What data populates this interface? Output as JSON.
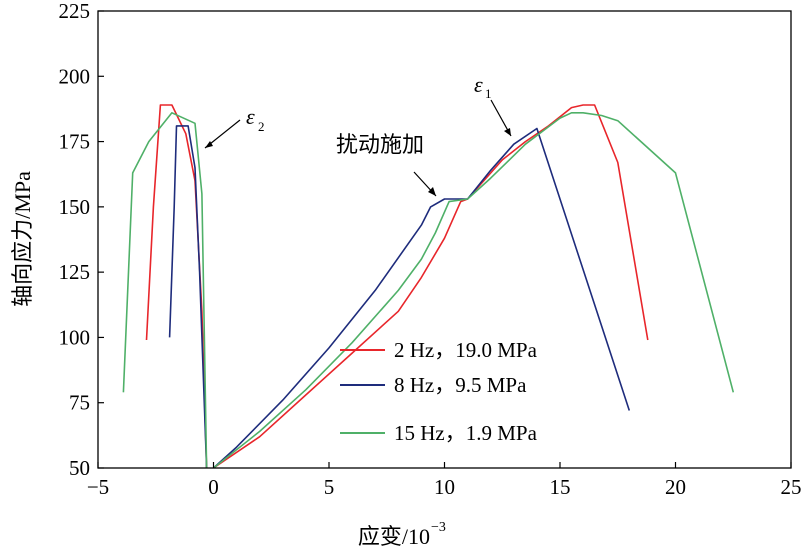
{
  "chart_data": {
    "type": "line",
    "xlabel": "应变/10",
    "xlabel_exponent": "−3",
    "ylabel": "轴向应力/MPa",
    "xlim": [
      -5,
      25
    ],
    "ylim": [
      50,
      225
    ],
    "xticks": [
      "−5",
      "0",
      "5",
      "10",
      "15",
      "20",
      "25"
    ],
    "yticks": [
      "50",
      "75",
      "100",
      "125",
      "150",
      "175",
      "200",
      "225"
    ],
    "grid": false,
    "legend_position": "bottom-center",
    "annotations": {
      "disturbance": "扰动施加",
      "eps1_symbol": "ε",
      "eps1_sub": "1",
      "eps2_symbol": "ε",
      "eps2_sub": "2"
    },
    "series": [
      {
        "name": "2 Hz，19.0 MPa",
        "color": "#e8262b",
        "axial": [
          [
            0,
            50
          ],
          [
            2,
            62
          ],
          [
            4,
            78
          ],
          [
            6,
            94
          ],
          [
            8,
            110
          ],
          [
            9,
            123
          ],
          [
            10,
            138
          ],
          [
            10.7,
            152
          ],
          [
            11,
            153
          ],
          [
            12.5,
            168
          ],
          [
            13.5,
            175
          ],
          [
            14.5,
            181
          ],
          [
            15.5,
            188
          ],
          [
            16,
            189
          ],
          [
            16.5,
            189
          ],
          [
            17.5,
            167
          ],
          [
            18.8,
            99
          ]
        ],
        "lateral": [
          [
            -2.9,
            99
          ],
          [
            -2.6,
            150
          ],
          [
            -2.3,
            189
          ],
          [
            -1.8,
            189
          ],
          [
            -1.2,
            178
          ],
          [
            -0.8,
            160
          ],
          [
            -0.5,
            110
          ],
          [
            -0.3,
            50
          ]
        ]
      },
      {
        "name": "8 Hz，9.5 MPa",
        "color": "#1e2c7c",
        "axial": [
          [
            0,
            50
          ],
          [
            1,
            58
          ],
          [
            3,
            76
          ],
          [
            5,
            96
          ],
          [
            7,
            118
          ],
          [
            9,
            143
          ],
          [
            9.4,
            150
          ],
          [
            10,
            153
          ],
          [
            11,
            153
          ],
          [
            12,
            164
          ],
          [
            13,
            174
          ],
          [
            14,
            180
          ],
          [
            18,
            72
          ]
        ],
        "lateral": [
          [
            -1.9,
            100
          ],
          [
            -1.7,
            150
          ],
          [
            -1.6,
            181
          ],
          [
            -1.1,
            181
          ],
          [
            -0.8,
            165
          ],
          [
            -0.6,
            125
          ],
          [
            -0.3,
            50
          ]
        ]
      },
      {
        "name": "15 Hz，1.9 MPa",
        "color": "#4fb068",
        "axial": [
          [
            0,
            50
          ],
          [
            2,
            64
          ],
          [
            4,
            80
          ],
          [
            6,
            98
          ],
          [
            8,
            118
          ],
          [
            9,
            130
          ],
          [
            9.6,
            140
          ],
          [
            10.2,
            152
          ],
          [
            11,
            153
          ],
          [
            12,
            161
          ],
          [
            13.5,
            174
          ],
          [
            15,
            184
          ],
          [
            15.5,
            186
          ],
          [
            16,
            186
          ],
          [
            16.8,
            185
          ],
          [
            17.5,
            183
          ],
          [
            20,
            163
          ],
          [
            22.5,
            79
          ]
        ],
        "lateral": [
          [
            -3.9,
            79
          ],
          [
            -3.5,
            163
          ],
          [
            -2.8,
            175
          ],
          [
            -1.8,
            186
          ],
          [
            -0.8,
            182
          ],
          [
            -0.5,
            155
          ],
          [
            -0.3,
            50
          ]
        ]
      }
    ]
  }
}
